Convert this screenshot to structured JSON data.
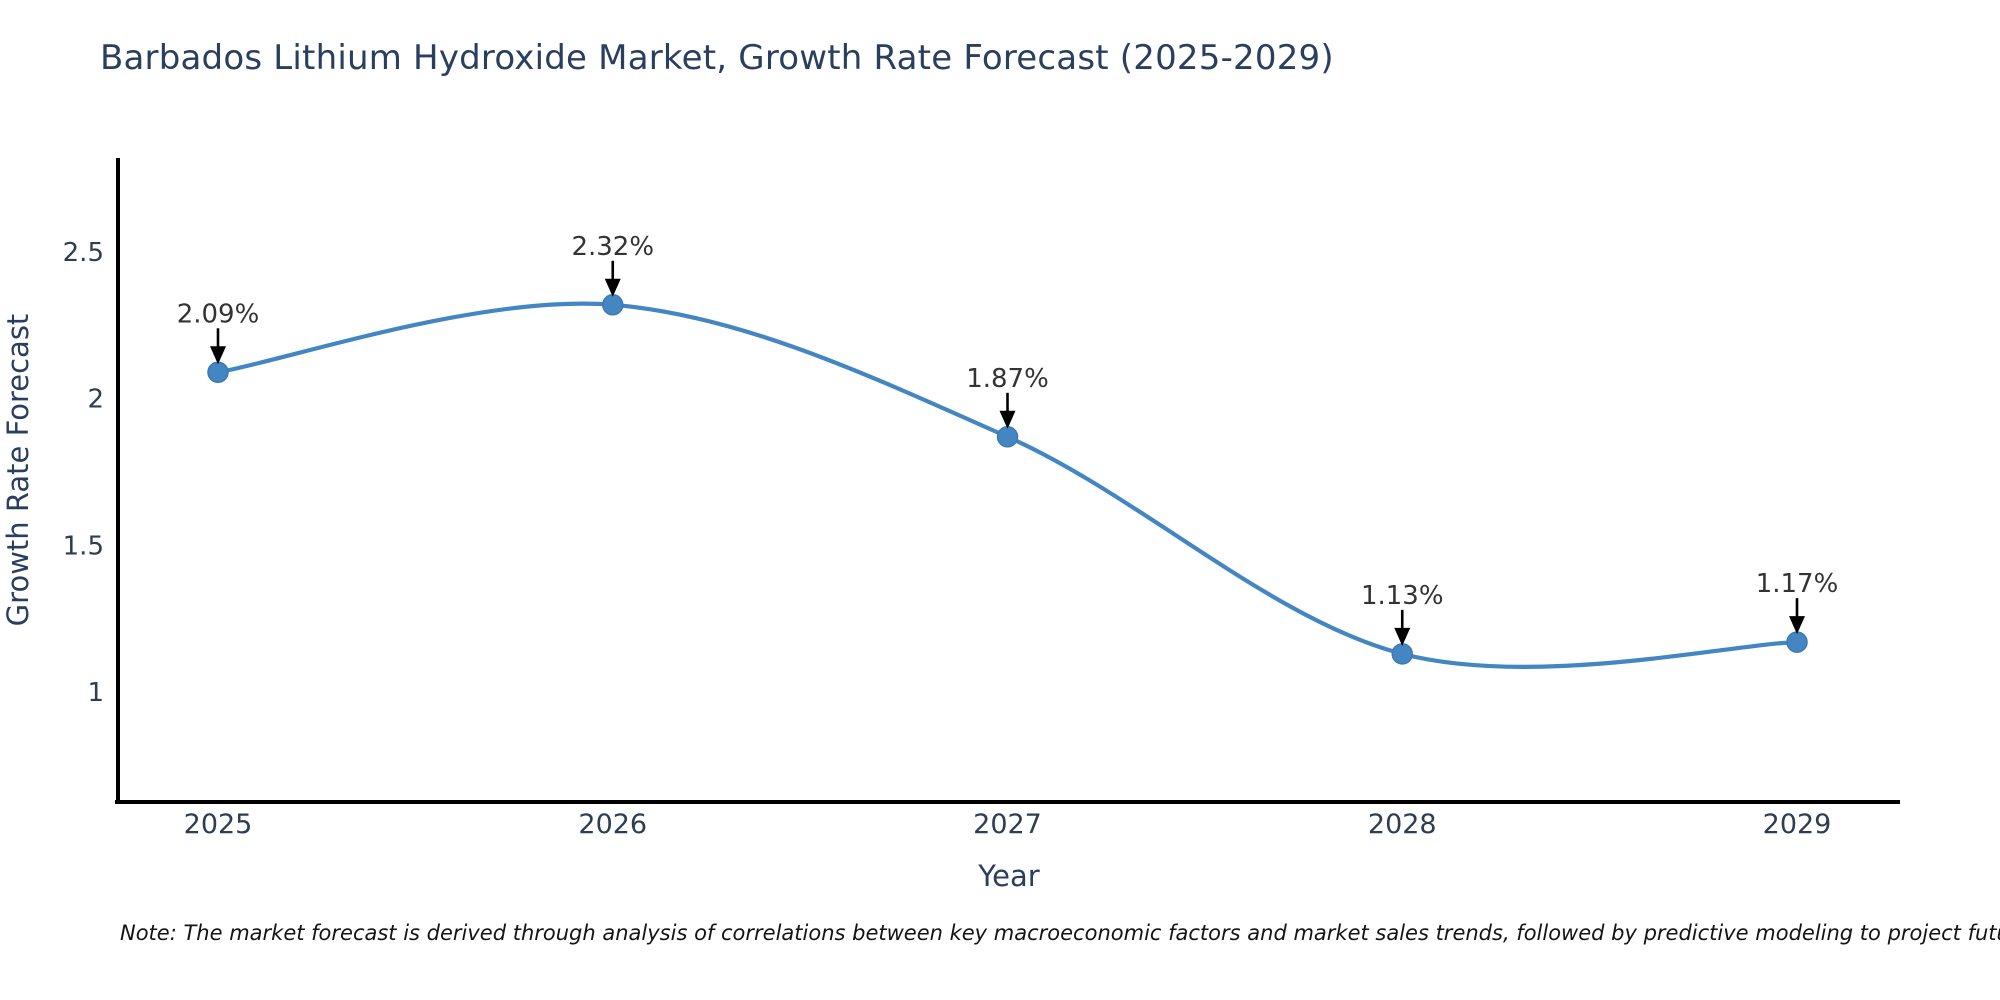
{
  "chart_data": {
    "type": "line",
    "title": "Barbados Lithium Hydroxide Market, Growth Rate Forecast (2025-2029)",
    "xlabel": "Year",
    "ylabel": "Growth Rate Forecast",
    "categories": [
      "2025",
      "2026",
      "2027",
      "2028",
      "2029"
    ],
    "values": [
      2.09,
      2.32,
      1.87,
      1.13,
      1.17
    ],
    "point_labels": [
      "2.09%",
      "2.32%",
      "1.87%",
      "1.13%",
      "1.17%"
    ],
    "y_ticks": [
      1,
      1.5,
      2,
      2.5
    ],
    "ylim": [
      0.63,
      2.82
    ],
    "grid": false,
    "legend": null,
    "line_color": "#4486c2",
    "marker_color": "#4486c2",
    "marker_edge_color": "#3c7ab3",
    "arrow_color": "#000000",
    "annotation_text_color": "#333333"
  },
  "note": "Note: The market forecast is derived through analysis of correlations between key macroeconomic factors and market sales trends, followed by predictive modeling to project future sales",
  "colors": {
    "title_text": "#2a3f5f",
    "axis_title_text": "#2a3f5f",
    "tick_label_text": "#2d3e50",
    "axis_line": "#000000",
    "note_text": "#141414",
    "background": "#ffffff"
  }
}
